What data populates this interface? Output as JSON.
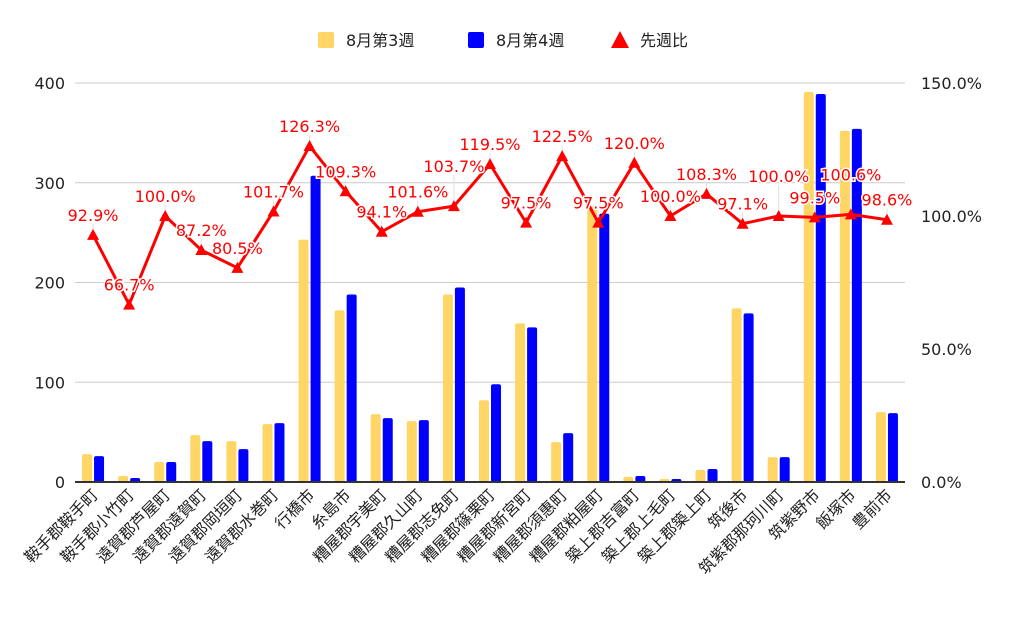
{
  "chart_data": {
    "type": "bar+line",
    "title": "",
    "categories": [
      "鞍手郡鞍手町",
      "鞍手郡小竹町",
      "遠賀郡芦屋町",
      "遠賀郡遠賀町",
      "遠賀郡岡垣町",
      "遠賀郡水巻町",
      "行橋市",
      "糸島市",
      "糟屋郡宇美町",
      "糟屋郡久山町",
      "糟屋郡志免町",
      "糟屋郡篠栗町",
      "糟屋郡新宮町",
      "糟屋郡須惠町",
      "糟屋郡粕屋町",
      "築上郡吉富町",
      "築上郡上毛町",
      "築上郡築上町",
      "筑後市",
      "筑紫郡那珂川町",
      "筑紫野市",
      "飯塚市",
      "豊前市"
    ],
    "series": [
      {
        "name": "8月第3週",
        "type": "bar",
        "axis": "left",
        "color": "#ffd666",
        "values": [
          28,
          6,
          20,
          47,
          41,
          58,
          243,
          172,
          68,
          61,
          188,
          82,
          159,
          40,
          276,
          5,
          3,
          12,
          174,
          25,
          391,
          352,
          70
        ]
      },
      {
        "name": "8月第4週",
        "type": "bar",
        "axis": "left",
        "color": "#0000ff",
        "values": [
          26,
          4,
          20,
          41,
          33,
          59,
          307,
          188,
          64,
          62,
          195,
          98,
          155,
          49,
          269,
          6,
          3,
          13,
          169,
          25,
          389,
          354,
          69
        ]
      },
      {
        "name": "先週比",
        "type": "line",
        "axis": "right",
        "color": "#ff0000",
        "values": [
          92.9,
          66.7,
          100.0,
          87.2,
          80.5,
          101.7,
          126.3,
          109.3,
          94.1,
          101.6,
          103.7,
          119.5,
          97.5,
          122.5,
          97.5,
          120.0,
          100.0,
          108.3,
          97.1,
          100.0,
          99.5,
          100.6,
          98.6
        ],
        "labels": [
          "92.9%",
          "66.7%",
          "100.0%",
          "87.2%",
          "80.5%",
          "101.7%",
          "126.3%",
          "109.3%",
          "94.1%",
          "101.6%",
          "103.7%",
          "119.5%",
          "97.5%",
          "122.5%",
          "97.5%",
          "120.0%",
          "100.0%",
          "108.3%",
          "97.1%",
          "100.0%",
          "99.5%",
          "100.6%",
          "98.6%"
        ]
      }
    ],
    "left_axis": {
      "ylim": [
        0,
        400
      ],
      "ticks": [
        "0",
        "100",
        "200",
        "300",
        "400"
      ]
    },
    "right_axis": {
      "ylim": [
        0,
        150
      ],
      "ticks": [
        "0.0%",
        "50.0%",
        "100.0%",
        "150.0%"
      ]
    },
    "legend_position": "top",
    "grid": true
  }
}
